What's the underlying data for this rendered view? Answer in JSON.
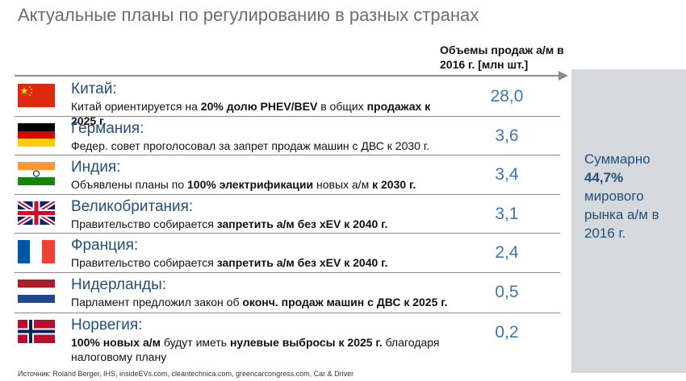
{
  "title": "Актуальные планы по регулированию в разных странах",
  "column_header_line1": "Объемы продаж а/м в",
  "column_header_line2": "2016 г. [млн шт.]",
  "summary": {
    "line1": "Суммарно",
    "line2": "44,7%",
    "line3": "мирового",
    "line4": "рынка а/м в",
    "line5": "2016 г."
  },
  "rows": [
    {
      "country": "Китай:",
      "d1": "Китай ориентируется на ",
      "d2": "20% долю PHEV/BEV",
      "d3": " в общих ",
      "d4": "продажах к 2025 г.",
      "value": "28,0",
      "flag": "china-flag-icon"
    },
    {
      "country": "Германия:",
      "d1": "Федер. совет проголосовал за запрет продаж машин с ДВС к 2030 г.",
      "value": "3,6",
      "flag": "germany-flag-icon"
    },
    {
      "country": "Индия:",
      "d1": "Объявлены планы по ",
      "d2": "100% электрификации",
      "d3": " новых а/м ",
      "d4": "к 2030 г.",
      "value": "3,4",
      "flag": "india-flag-icon"
    },
    {
      "country": "Великобритания:",
      "d1": "Правительство собирается ",
      "d2": "запретить а/м без xEV к 2040 г.",
      "value": "3,1",
      "flag": "uk-flag-icon"
    },
    {
      "country": "Франция:",
      "d1": "Правительство собирается ",
      "d2": "запретить а/м без xEV к 2040 г.",
      "value": "2,4",
      "flag": "france-flag-icon"
    },
    {
      "country": "Нидерланды:",
      "d1": "Парламент предложил закон об ",
      "d2": "оконч. продаж машин с ДВС к 2025 г.",
      "value": "0,5",
      "flag": "netherlands-flag-icon"
    },
    {
      "country": "Норвегия:",
      "d1": "100% новых а/м",
      "d2": " будут иметь ",
      "d3": "нулевые выбросы к 2025 г.",
      "d4": " благодаря",
      "d5": "налоговому плану",
      "value": "0,2",
      "flag": "norway-flag-icon"
    }
  ],
  "source": "Источник: Roland Berger, IHS, insideEVs.com, cleantechnica.com, greencarcongress.com, Car & Driver"
}
